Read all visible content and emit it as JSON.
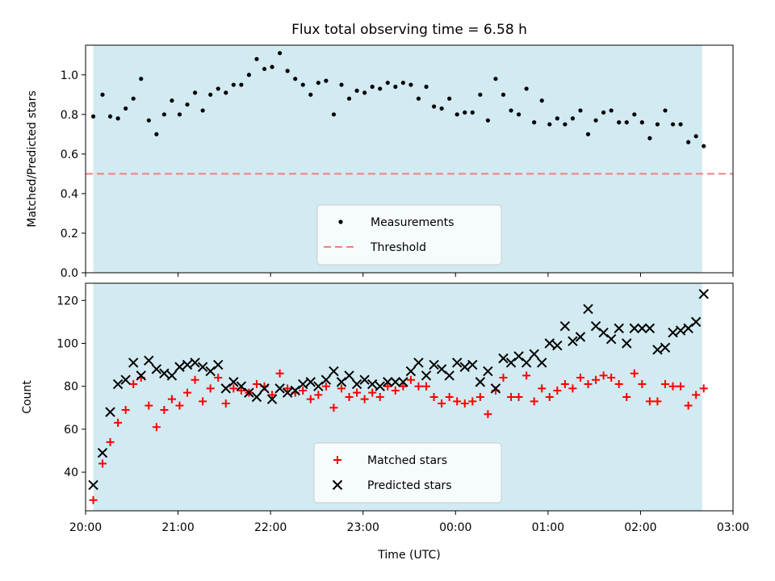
{
  "chart_data": [
    {
      "type": "scatter",
      "title": "Flux total observing time = 6.58 h",
      "xlabel": "",
      "ylabel": "Matched/Predicted stars",
      "xlim": [
        "20:00",
        "03:00"
      ],
      "ylim": [
        0,
        1.15
      ],
      "yticks": [
        "0.0",
        "0.2",
        "0.4",
        "0.6",
        "0.8",
        "1.0"
      ],
      "shaded_interval": [
        "20:05",
        "02:40"
      ],
      "shade_color": "#add8e6",
      "legend_position": "lower center",
      "series": [
        {
          "name": "Measurements",
          "marker": "dot",
          "color": "#000000",
          "points": [
            [
              "20:05",
              0.79
            ],
            [
              "20:11",
              0.9
            ],
            [
              "20:16",
              0.79
            ],
            [
              "20:21",
              0.78
            ],
            [
              "20:26",
              0.83
            ],
            [
              "20:31",
              0.88
            ],
            [
              "20:36",
              0.98
            ],
            [
              "20:41",
              0.77
            ],
            [
              "20:46",
              0.7
            ],
            [
              "20:51",
              0.8
            ],
            [
              "20:56",
              0.87
            ],
            [
              "21:01",
              0.8
            ],
            [
              "21:06",
              0.85
            ],
            [
              "21:11",
              0.91
            ],
            [
              "21:16",
              0.82
            ],
            [
              "21:21",
              0.9
            ],
            [
              "21:26",
              0.93
            ],
            [
              "21:31",
              0.91
            ],
            [
              "21:36",
              0.95
            ],
            [
              "21:41",
              0.95
            ],
            [
              "21:46",
              1.0
            ],
            [
              "21:51",
              1.08
            ],
            [
              "21:56",
              1.03
            ],
            [
              "22:01",
              1.04
            ],
            [
              "22:06",
              1.11
            ],
            [
              "22:11",
              1.02
            ],
            [
              "22:16",
              0.98
            ],
            [
              "22:21",
              0.95
            ],
            [
              "22:26",
              0.9
            ],
            [
              "22:31",
              0.96
            ],
            [
              "22:36",
              0.97
            ],
            [
              "22:41",
              0.8
            ],
            [
              "22:46",
              0.95
            ],
            [
              "22:51",
              0.88
            ],
            [
              "22:56",
              0.92
            ],
            [
              "23:01",
              0.91
            ],
            [
              "23:06",
              0.94
            ],
            [
              "23:11",
              0.93
            ],
            [
              "23:16",
              0.96
            ],
            [
              "23:21",
              0.94
            ],
            [
              "23:26",
              0.96
            ],
            [
              "23:31",
              0.95
            ],
            [
              "23:36",
              0.88
            ],
            [
              "23:41",
              0.94
            ],
            [
              "23:46",
              0.84
            ],
            [
              "23:51",
              0.83
            ],
            [
              "23:56",
              0.88
            ],
            [
              "00:01",
              0.8
            ],
            [
              "00:06",
              0.81
            ],
            [
              "00:11",
              0.81
            ],
            [
              "00:16",
              0.9
            ],
            [
              "00:21",
              0.77
            ],
            [
              "00:26",
              0.98
            ],
            [
              "00:31",
              0.9
            ],
            [
              "00:36",
              0.82
            ],
            [
              "00:41",
              0.8
            ],
            [
              "00:46",
              0.93
            ],
            [
              "00:51",
              0.76
            ],
            [
              "00:56",
              0.87
            ],
            [
              "01:01",
              0.75
            ],
            [
              "01:06",
              0.78
            ],
            [
              "01:11",
              0.75
            ],
            [
              "01:16",
              0.78
            ],
            [
              "01:21",
              0.82
            ],
            [
              "01:26",
              0.7
            ],
            [
              "01:31",
              0.77
            ],
            [
              "01:36",
              0.81
            ],
            [
              "01:41",
              0.82
            ],
            [
              "01:46",
              0.76
            ],
            [
              "01:51",
              0.76
            ],
            [
              "01:56",
              0.8
            ],
            [
              "02:01",
              0.76
            ],
            [
              "02:06",
              0.68
            ],
            [
              "02:11",
              0.75
            ],
            [
              "02:16",
              0.82
            ],
            [
              "02:21",
              0.75
            ],
            [
              "02:26",
              0.75
            ],
            [
              "02:31",
              0.66
            ],
            [
              "02:36",
              0.69
            ],
            [
              "02:41",
              0.64
            ]
          ]
        },
        {
          "name": "Threshold",
          "marker": "dashed-line",
          "color": "#f08080",
          "y": 0.5
        }
      ]
    },
    {
      "type": "scatter",
      "title": "",
      "xlabel": "Time (UTC)",
      "ylabel": "Count",
      "xlim": [
        "20:00",
        "03:00"
      ],
      "xticks": [
        "20:00",
        "21:00",
        "22:00",
        "23:00",
        "00:00",
        "01:00",
        "02:00",
        "03:00"
      ],
      "ylim": [
        22,
        128
      ],
      "yticks": [
        "40",
        "60",
        "80",
        "100",
        "120"
      ],
      "shaded_interval": [
        "20:05",
        "02:40"
      ],
      "shade_color": "#add8e6",
      "legend_position": "lower center",
      "series": [
        {
          "name": "Matched stars",
          "marker": "plus",
          "color": "#ff0000",
          "points": [
            [
              "20:05",
              27
            ],
            [
              "20:11",
              44
            ],
            [
              "20:16",
              54
            ],
            [
              "20:21",
              63
            ],
            [
              "20:26",
              69
            ],
            [
              "20:31",
              81
            ],
            [
              "20:36",
              84
            ],
            [
              "20:41",
              71
            ],
            [
              "20:46",
              61
            ],
            [
              "20:51",
              69
            ],
            [
              "20:56",
              74
            ],
            [
              "21:01",
              71
            ],
            [
              "21:06",
              77
            ],
            [
              "21:11",
              83
            ],
            [
              "21:16",
              73
            ],
            [
              "21:21",
              79
            ],
            [
              "21:26",
              84
            ],
            [
              "21:31",
              72
            ],
            [
              "21:36",
              79
            ],
            [
              "21:41",
              78
            ],
            [
              "21:46",
              77
            ],
            [
              "21:51",
              81
            ],
            [
              "21:56",
              80
            ],
            [
              "22:01",
              76
            ],
            [
              "22:06",
              86
            ],
            [
              "22:11",
              79
            ],
            [
              "22:16",
              77
            ],
            [
              "22:21",
              78
            ],
            [
              "22:26",
              74
            ],
            [
              "22:31",
              76
            ],
            [
              "22:36",
              80
            ],
            [
              "22:41",
              70
            ],
            [
              "22:46",
              79
            ],
            [
              "22:51",
              75
            ],
            [
              "22:56",
              77
            ],
            [
              "23:01",
              74
            ],
            [
              "23:06",
              77
            ],
            [
              "23:11",
              75
            ],
            [
              "23:16",
              80
            ],
            [
              "23:21",
              78
            ],
            [
              "23:26",
              80
            ],
            [
              "23:31",
              83
            ],
            [
              "23:36",
              80
            ],
            [
              "23:41",
              80
            ],
            [
              "23:46",
              75
            ],
            [
              "23:51",
              72
            ],
            [
              "23:56",
              75
            ],
            [
              "00:01",
              73
            ],
            [
              "00:06",
              72
            ],
            [
              "00:11",
              73
            ],
            [
              "00:16",
              75
            ],
            [
              "00:21",
              67
            ],
            [
              "00:26",
              78
            ],
            [
              "00:31",
              84
            ],
            [
              "00:36",
              75
            ],
            [
              "00:41",
              75
            ],
            [
              "00:46",
              85
            ],
            [
              "00:51",
              73
            ],
            [
              "00:56",
              79
            ],
            [
              "01:01",
              75
            ],
            [
              "01:06",
              78
            ],
            [
              "01:11",
              81
            ],
            [
              "01:16",
              79
            ],
            [
              "01:21",
              84
            ],
            [
              "01:26",
              81
            ],
            [
              "01:31",
              83
            ],
            [
              "01:36",
              85
            ],
            [
              "01:41",
              84
            ],
            [
              "01:46",
              81
            ],
            [
              "01:51",
              75
            ],
            [
              "01:56",
              86
            ],
            [
              "02:01",
              81
            ],
            [
              "02:06",
              73
            ],
            [
              "02:11",
              73
            ],
            [
              "02:16",
              81
            ],
            [
              "02:21",
              80
            ],
            [
              "02:26",
              80
            ],
            [
              "02:31",
              71
            ],
            [
              "02:36",
              76
            ],
            [
              "02:41",
              79
            ]
          ]
        },
        {
          "name": "Predicted stars",
          "marker": "x",
          "color": "#000000",
          "points": [
            [
              "20:05",
              34
            ],
            [
              "20:11",
              49
            ],
            [
              "20:16",
              68
            ],
            [
              "20:21",
              81
            ],
            [
              "20:26",
              83
            ],
            [
              "20:31",
              91
            ],
            [
              "20:36",
              85
            ],
            [
              "20:41",
              92
            ],
            [
              "20:46",
              88
            ],
            [
              "20:51",
              86
            ],
            [
              "20:56",
              85
            ],
            [
              "21:01",
              89
            ],
            [
              "21:06",
              90
            ],
            [
              "21:11",
              91
            ],
            [
              "21:16",
              89
            ],
            [
              "21:21",
              87
            ],
            [
              "21:26",
              90
            ],
            [
              "21:31",
              79
            ],
            [
              "21:36",
              82
            ],
            [
              "21:41",
              80
            ],
            [
              "21:46",
              77
            ],
            [
              "21:51",
              75
            ],
            [
              "21:56",
              79
            ],
            [
              "22:01",
              74
            ],
            [
              "22:06",
              79
            ],
            [
              "22:11",
              77
            ],
            [
              "22:16",
              78
            ],
            [
              "22:21",
              81
            ],
            [
              "22:26",
              82
            ],
            [
              "22:31",
              80
            ],
            [
              "22:36",
              83
            ],
            [
              "22:41",
              87
            ],
            [
              "22:46",
              82
            ],
            [
              "22:51",
              85
            ],
            [
              "22:56",
              81
            ],
            [
              "23:01",
              83
            ],
            [
              "23:06",
              81
            ],
            [
              "23:11",
              80
            ],
            [
              "23:16",
              82
            ],
            [
              "23:21",
              82
            ],
            [
              "23:26",
              82
            ],
            [
              "23:31",
              87
            ],
            [
              "23:36",
              91
            ],
            [
              "23:41",
              85
            ],
            [
              "23:46",
              90
            ],
            [
              "23:51",
              88
            ],
            [
              "23:56",
              85
            ],
            [
              "00:01",
              91
            ],
            [
              "00:06",
              89
            ],
            [
              "00:11",
              90
            ],
            [
              "00:16",
              82
            ],
            [
              "00:21",
              87
            ],
            [
              "00:26",
              79
            ],
            [
              "00:31",
              93
            ],
            [
              "00:36",
              91
            ],
            [
              "00:41",
              94
            ],
            [
              "00:46",
              91
            ],
            [
              "00:51",
              95
            ],
            [
              "00:56",
              91
            ],
            [
              "01:01",
              100
            ],
            [
              "01:06",
              99
            ],
            [
              "01:11",
              108
            ],
            [
              "01:16",
              101
            ],
            [
              "01:21",
              103
            ],
            [
              "01:26",
              116
            ],
            [
              "01:31",
              108
            ],
            [
              "01:36",
              105
            ],
            [
              "01:41",
              102
            ],
            [
              "01:46",
              107
            ],
            [
              "01:51",
              100
            ],
            [
              "01:56",
              107
            ],
            [
              "02:01",
              107
            ],
            [
              "02:06",
              107
            ],
            [
              "02:11",
              97
            ],
            [
              "02:16",
              98
            ],
            [
              "02:21",
              105
            ],
            [
              "02:26",
              106
            ],
            [
              "02:31",
              107
            ],
            [
              "02:36",
              110
            ],
            [
              "02:41",
              123
            ]
          ]
        }
      ]
    }
  ]
}
